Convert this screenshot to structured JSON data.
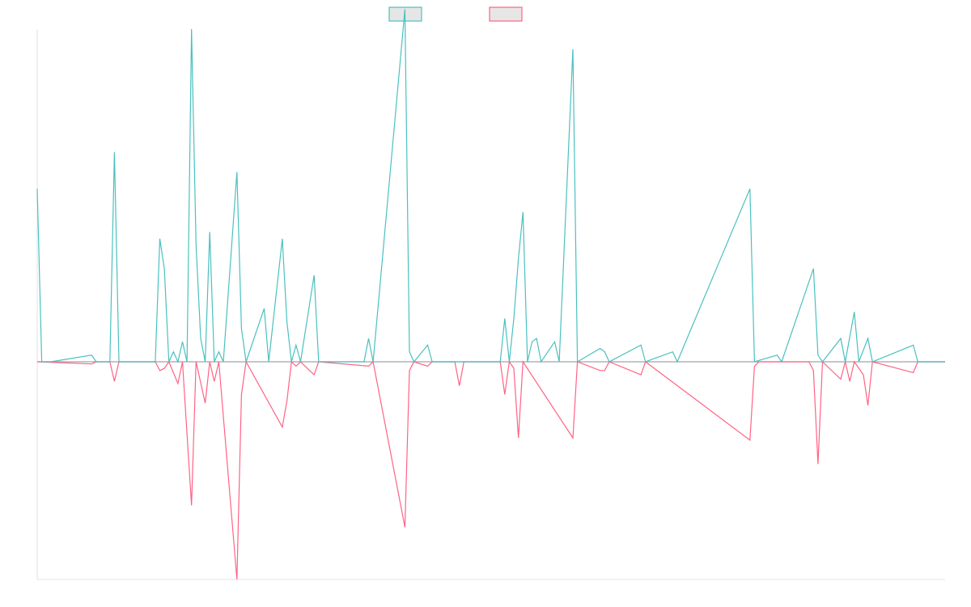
{
  "chart_data": {
    "type": "line",
    "legend_position": "top-center",
    "grid": false,
    "ylim": [
      -100,
      100
    ],
    "x_count": 201,
    "series": [
      {
        "color": "#4bc0c0",
        "points": [
          [
            0,
            52
          ],
          [
            1,
            0
          ],
          [
            3,
            0
          ],
          [
            12,
            2
          ],
          [
            13,
            0
          ],
          [
            16,
            0
          ],
          [
            17,
            63
          ],
          [
            18,
            0
          ],
          [
            26,
            0
          ],
          [
            27,
            37
          ],
          [
            28,
            28
          ],
          [
            29,
            0
          ],
          [
            30,
            3
          ],
          [
            31,
            0
          ],
          [
            32,
            6
          ],
          [
            33,
            0
          ],
          [
            34,
            100
          ],
          [
            35,
            35
          ],
          [
            36,
            7
          ],
          [
            37,
            0
          ],
          [
            38,
            39
          ],
          [
            39,
            0
          ],
          [
            40,
            3
          ],
          [
            41,
            0
          ],
          [
            44,
            57
          ],
          [
            45,
            10
          ],
          [
            46,
            0
          ],
          [
            50,
            16
          ],
          [
            51,
            0
          ],
          [
            54,
            37
          ],
          [
            55,
            12
          ],
          [
            56,
            0
          ],
          [
            57,
            5
          ],
          [
            58,
            0
          ],
          [
            61,
            26
          ],
          [
            62,
            0
          ],
          [
            72,
            0
          ],
          [
            73,
            7
          ],
          [
            74,
            0
          ],
          [
            81,
            106
          ],
          [
            82,
            3
          ],
          [
            83,
            0
          ],
          [
            86,
            5
          ],
          [
            87,
            0
          ],
          [
            102,
            0
          ],
          [
            103,
            13
          ],
          [
            104,
            0
          ],
          [
            105,
            13
          ],
          [
            106,
            31
          ],
          [
            107,
            45
          ],
          [
            108,
            0
          ],
          [
            109,
            6
          ],
          [
            110,
            7
          ],
          [
            111,
            0
          ],
          [
            114,
            6
          ],
          [
            115,
            0
          ],
          [
            118,
            94
          ],
          [
            119,
            0
          ],
          [
            124,
            4
          ],
          [
            125,
            3
          ],
          [
            126,
            0
          ],
          [
            133,
            5
          ],
          [
            134,
            0
          ],
          [
            140,
            3
          ],
          [
            141,
            0
          ],
          [
            157,
            52
          ],
          [
            158,
            0
          ],
          [
            163,
            2
          ],
          [
            164,
            0
          ],
          [
            171,
            28
          ],
          [
            172,
            2
          ],
          [
            173,
            0
          ],
          [
            177,
            7
          ],
          [
            178,
            0
          ],
          [
            180,
            15
          ],
          [
            181,
            0
          ],
          [
            183,
            7
          ],
          [
            184,
            0
          ],
          [
            193,
            5
          ],
          [
            194,
            0
          ],
          [
            200,
            0
          ]
        ]
      },
      {
        "color": "#ff6384",
        "points": [
          [
            0,
            0
          ],
          [
            12,
            -1
          ],
          [
            13,
            0
          ],
          [
            16,
            0
          ],
          [
            17,
            -9
          ],
          [
            18,
            0
          ],
          [
            26,
            0
          ],
          [
            27,
            -4
          ],
          [
            28,
            -3
          ],
          [
            29,
            0
          ],
          [
            31,
            -10
          ],
          [
            32,
            0
          ],
          [
            34,
            -66
          ],
          [
            35,
            0
          ],
          [
            37,
            -19
          ],
          [
            38,
            0
          ],
          [
            39,
            -9
          ],
          [
            40,
            0
          ],
          [
            44,
            -100
          ],
          [
            45,
            -15
          ],
          [
            46,
            0
          ],
          [
            54,
            -30
          ],
          [
            55,
            -18
          ],
          [
            56,
            0
          ],
          [
            57,
            -2
          ],
          [
            58,
            0
          ],
          [
            61,
            -6
          ],
          [
            62,
            0
          ],
          [
            73,
            -2
          ],
          [
            74,
            0
          ],
          [
            81,
            -76
          ],
          [
            82,
            -4
          ],
          [
            83,
            0
          ],
          [
            86,
            -2
          ],
          [
            87,
            0
          ],
          [
            92,
            0
          ],
          [
            93,
            -11
          ],
          [
            94,
            0
          ],
          [
            102,
            0
          ],
          [
            103,
            -15
          ],
          [
            104,
            0
          ],
          [
            105,
            -3
          ],
          [
            106,
            -35
          ],
          [
            107,
            0
          ],
          [
            118,
            -35
          ],
          [
            119,
            0
          ],
          [
            124,
            -4
          ],
          [
            125,
            -4
          ],
          [
            126,
            0
          ],
          [
            133,
            -6
          ],
          [
            134,
            0
          ],
          [
            157,
            -36
          ],
          [
            158,
            -2
          ],
          [
            159,
            0
          ],
          [
            170,
            0
          ],
          [
            171,
            -4
          ],
          [
            172,
            -47
          ],
          [
            173,
            0
          ],
          [
            177,
            -8
          ],
          [
            178,
            0
          ],
          [
            179,
            -9
          ],
          [
            180,
            0
          ],
          [
            182,
            -6
          ],
          [
            183,
            -20
          ],
          [
            184,
            0
          ],
          [
            193,
            -5
          ],
          [
            194,
            0
          ],
          [
            200,
            0
          ]
        ]
      }
    ]
  }
}
